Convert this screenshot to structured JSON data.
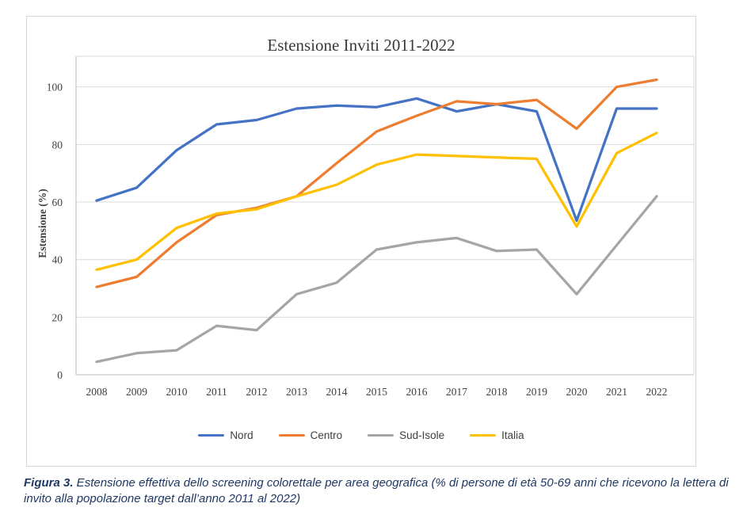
{
  "figure": {
    "caption_label": "Figura 3.",
    "caption_text": " Estensione effettiva dello screening colorettale per area geografica (% di persone di età 50-69 anni che ricevono la lettera di invito alla popolazione target dall’anno 2011 al 2022)"
  },
  "chart_data": {
    "type": "line",
    "title": "Estensione Inviti 2011-2022",
    "xlabel": "",
    "ylabel": "Estensione (%)",
    "x": [
      "2008",
      "2009",
      "2010",
      "2011",
      "2012",
      "2013",
      "2014",
      "2015",
      "2016",
      "2017",
      "2018",
      "2019",
      "2020",
      "2021",
      "2022"
    ],
    "yticks": [
      0,
      20,
      40,
      60,
      80,
      100
    ],
    "ylim": [
      0,
      110
    ],
    "grid": true,
    "legend_position": "bottom",
    "colors": {
      "grid": "#d9d9d9",
      "axis": "#c9c9c9",
      "tick_text": "#404040",
      "title_text": "#3a3a3a",
      "caption_text": "#1f3864"
    },
    "series": [
      {
        "name": "Nord",
        "color": "#4472C4",
        "values": [
          60.5,
          65,
          78,
          87,
          88.5,
          92.5,
          93.5,
          93,
          96,
          91.5,
          94,
          91.5,
          53.5,
          92.5,
          92.5
        ]
      },
      {
        "name": "Centro",
        "color": "#ED7D31",
        "values": [
          30.5,
          34,
          46,
          55.5,
          58,
          62,
          73.5,
          84.5,
          90,
          95,
          94,
          95.5,
          85.5,
          100,
          102.5
        ]
      },
      {
        "name": "Sud-Isole",
        "color": "#A5A5A5",
        "values": [
          4.5,
          7.5,
          8.5,
          17,
          15.5,
          28,
          32,
          43.5,
          46,
          47.5,
          43,
          43.5,
          28,
          45,
          62
        ]
      },
      {
        "name": "Italia",
        "color": "#FFC000",
        "values": [
          36.5,
          40,
          51,
          56,
          57.5,
          62,
          66,
          73,
          76.5,
          76,
          75.5,
          75,
          51.5,
          77,
          84
        ]
      }
    ]
  }
}
